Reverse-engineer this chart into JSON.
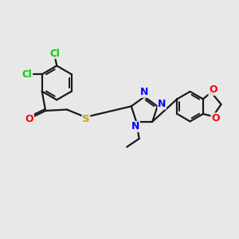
{
  "bg_color": "#e8e8e8",
  "bond_color": "#1a1a1a",
  "atom_colors": {
    "Cl": "#00cc00",
    "O": "#ff0000",
    "N": "#0000ff",
    "S": "#ccaa00",
    "C": "#1a1a1a"
  }
}
